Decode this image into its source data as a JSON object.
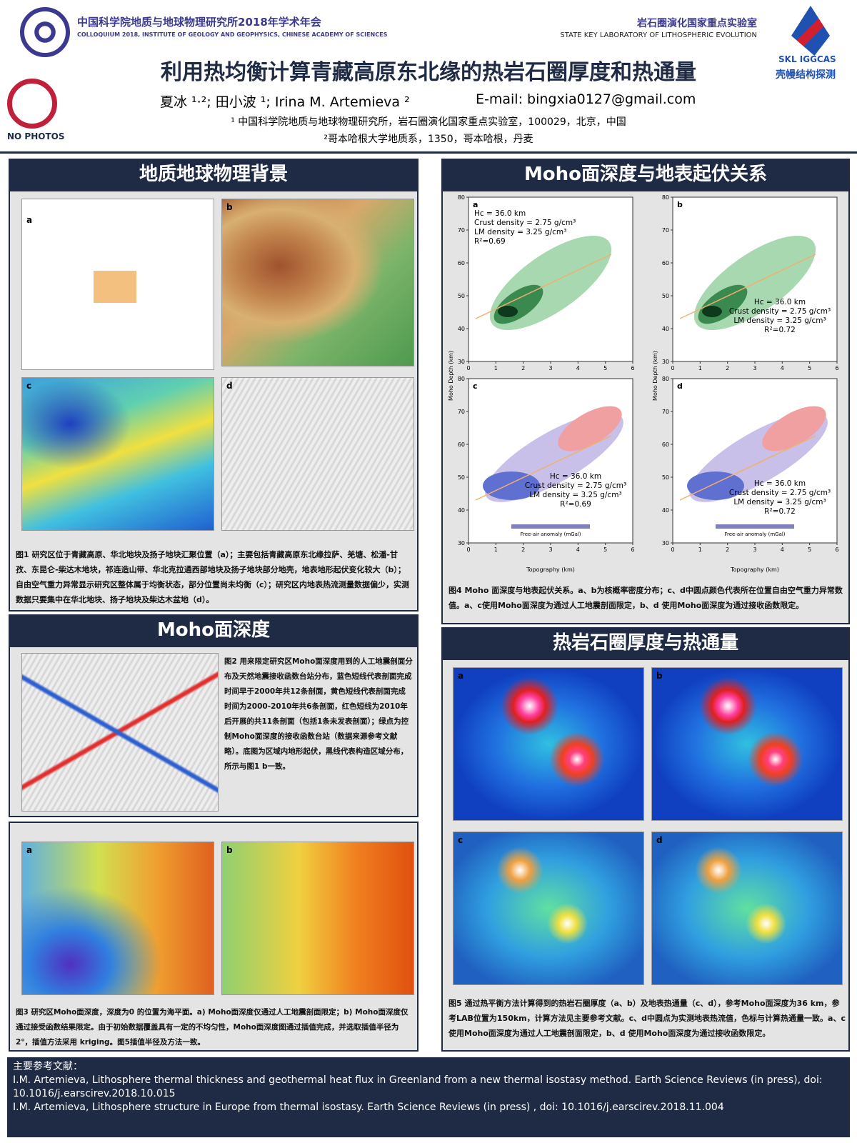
{
  "header": {
    "conf_cn": "中国科学院地质与地球物理研究所2018年学术年会",
    "conf_en": "COLLOQUIUM 2018, INSTITUTE OF GEOLOGY AND GEOPHYSICS, CHINESE ACADEMY OF SCIENCES",
    "lab_cn": "岩石圈演化国家重点实验室",
    "lab_en": "STATE KEY LABORATORY OF LITHOSPHERIC EVOLUTION",
    "title": "利用热均衡计算青藏高原东北缘的热岩石圈厚度和热通量",
    "authors": "夏冰 ¹·²; 田小波 ¹; Irina M. Artemieva ²",
    "email": "E-mail:  bingxia0127@gmail.com",
    "affil1": "¹ 中国科学院地质与地球物理研究所，岩石圈演化国家重点实验室，100029，北京，中国",
    "affil2": "²哥本哈根大学地质系，1350，哥本哈根，丹麦",
    "no_photos": "NO PHOTOS",
    "logo_en": "SKL IGGCAS",
    "logo_cn": "壳幔结构探测"
  },
  "sections": {
    "background": {
      "heading": "地质地球物理背景",
      "panels": [
        "a",
        "b",
        "c",
        "d"
      ],
      "caption": "图1  研究区位于青藏高原、华北地块及扬子地块汇聚位置（a）；主要包括青藏高原东北缘拉萨、羌塘、松潘-甘孜、东昆仑-柴达木地块，祁连造山带、华北克拉通西部地块及扬子地块部分地壳，地表地形起伏变化较大（b）；自由空气重力异常显示研究区整体属于均衡状态，部分位置尚未均衡（c）；研究区内地表热流测量数据偏少，实测数据只要集中在华北地块、扬子地块及柴达木盆地（d）。"
    },
    "moho": {
      "heading": "Moho面深度",
      "fig2_caption": "图2  用来限定研究区Moho面深度用到的人工地震剖面分布及天然地震接收函数台站分布，蓝色短线代表剖面完成时间早于2000年共12条剖面，黄色短线代表剖面完成时间为2000-2010年共6条剖面，红色短线为2010年后开展的共11条剖面（包括1条未发表剖面）；绿点为控制Moho面深度的接收函数台站（数据来源参考文献略）。底图为区域内地形起伏，黑线代表构造区域分布，所示与图1 b一致。",
      "fig3_panels": [
        "a",
        "b"
      ],
      "fig3_caption": "图3 研究区Moho面深度，深度为0 的位置为海平面。a) Moho面深度仅通过人工地震剖面限定；b) Moho面深度仅通过接受函数结果限定。由于初始数据覆盖具有一定的不均匀性，Moho面深度图通过插值完成，并选取插值半径为 2°，插值方法采用 kriging。图5插值半径及方法一致。"
    },
    "relation": {
      "heading": "Moho面深度与地表起伏关系",
      "y_label": "Moho Depth (km)",
      "x_label": "Topography (km)",
      "colorbar_label": "Free-air anomaly (mGal)",
      "yticks": [
        30,
        40,
        50,
        60,
        70,
        80
      ],
      "xticks": [
        0,
        1,
        2,
        3,
        4,
        5,
        6
      ],
      "panels": [
        {
          "label": "a",
          "lines": [
            "Hc = 36.0 km",
            "Crust density = 2.75 g/cm³",
            "LM density = 3.25 g/cm³",
            "R²=0.69"
          ]
        },
        {
          "label": "b",
          "lines": [
            "Hc = 36.0 km",
            "Crust density = 2.75 g/cm³",
            "LM density = 3.25 g/cm³",
            "R²=0.72"
          ]
        },
        {
          "label": "c",
          "lines": [
            "Hc = 36.0 km",
            "Crust density = 2.75 g/cm³",
            "LM density = 3.25 g/cm³",
            "R²=0.69"
          ]
        },
        {
          "label": "d",
          "lines": [
            "Hc = 36.0 km",
            "Crust density = 2.75 g/cm³",
            "LM density = 3.25 g/cm³",
            "R²=0.72"
          ]
        }
      ],
      "caption": "图4 Moho 面深度与地表起伏关系。a、b为核概率密度分布；c、d中圆点颜色代表所在位置自由空气重力异常数值。a、c使用Moho面深度为通过人工地震剖面限定，b、d 使用Moho面深度为通过接收函数限定。"
    },
    "thermal": {
      "heading": "热岩石圈厚度与热通量",
      "panels": [
        "a",
        "b",
        "c",
        "d"
      ],
      "caption": "图5 通过热平衡方法计算得到的热岩石圈厚度（a、b）及地表热通量（c、d），参考Moho面深度为36 km，参考LAB位置为150km，计算方法见主要参考文献。c、d中圆点为实测地表热流值，色标与计算热通量一致。a、c使用Moho面深度为通过人工地震剖面限定，b、d 使用Moho面深度为通过接收函数限定。"
    }
  },
  "references": {
    "heading": "主要参考文献：",
    "items": [
      "I.M. Artemieva, Lithosphere thermal thickness and geothermal heat flux in Greenland from a new thermal isostasy method. Earth Science Reviews (in press), doi: 10.1016/j.earscirev.2018.10.015",
      "I.M. Artemieva, Lithosphere structure in Europe from thermal isostasy. Earth Science Reviews (in press) , doi: 10.1016/j.earscirev.2018.11.004"
    ]
  }
}
